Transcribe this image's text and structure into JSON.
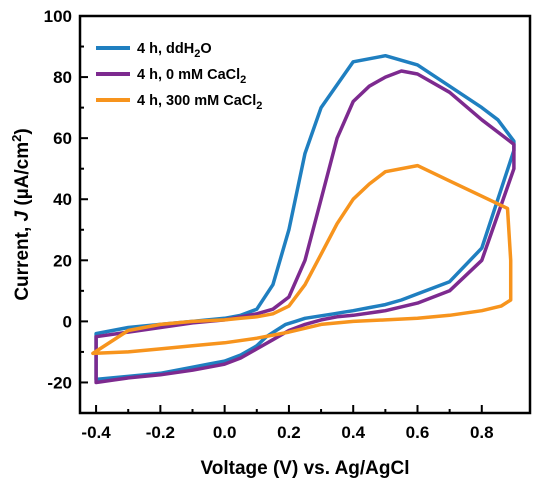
{
  "chart_data": {
    "type": "line",
    "xlabel": "Voltage (V) vs. Ag/AgCl",
    "ylabel": "Current, J (µA/cm²)",
    "ylabel_parts": {
      "pre": "Current, ",
      "italic": "J",
      "mid": " (µA/cm",
      "sup": "2",
      "post": ")"
    },
    "xlim": [
      -0.45,
      0.95
    ],
    "ylim": [
      -30,
      100
    ],
    "xticks": [
      -0.4,
      -0.2,
      0.0,
      0.2,
      0.4,
      0.6,
      0.8
    ],
    "xtick_labels": [
      "-0.4",
      "-0.2",
      "0.0",
      "0.2",
      "0.4",
      "0.6",
      "0.8"
    ],
    "yticks": [
      -20,
      0,
      20,
      40,
      60,
      80,
      100
    ],
    "ytick_labels": [
      "-20",
      "0",
      "20",
      "40",
      "60",
      "80",
      "100"
    ],
    "grid": false,
    "legend_position": "top-left",
    "series": [
      {
        "name": "4 h, ddH2O",
        "label_parts": {
          "pre": "4 h, ddH",
          "sub": "2",
          "post": "O"
        },
        "color": "#1f7fc0",
        "x": [
          -0.4,
          -0.3,
          -0.2,
          -0.1,
          -0.05,
          0.0,
          0.05,
          0.1,
          0.13,
          0.16,
          0.19,
          0.22,
          0.25,
          0.28,
          0.31,
          0.34,
          0.37,
          0.4,
          0.45,
          0.5,
          0.55,
          0.6,
          0.7,
          0.8,
          0.9,
          0.9,
          0.85,
          0.8,
          0.7,
          0.6,
          0.5,
          0.4,
          0.3,
          0.25,
          0.2,
          0.15,
          0.1,
          0.05,
          0.0,
          -0.1,
          -0.2,
          -0.3,
          -0.4,
          -0.4
        ],
        "y": [
          -19,
          -18,
          -17,
          -15,
          -14,
          -13,
          -11,
          -8,
          -5,
          -3,
          -1,
          0,
          1,
          1.5,
          2,
          2.5,
          3,
          3.5,
          4.5,
          5.5,
          7,
          9,
          13,
          24,
          56,
          59,
          66,
          70,
          77,
          84,
          87,
          85,
          70,
          55,
          30,
          12,
          4,
          2,
          1,
          0,
          -1,
          -2,
          -4,
          -19
        ]
      },
      {
        "name": "4 h, 0 mM CaCl2",
        "label_parts": {
          "pre": "4 h, 0 mM CaCl",
          "sub": "2",
          "post": ""
        },
        "color": "#7d2a8f",
        "x": [
          -0.4,
          -0.3,
          -0.2,
          -0.1,
          -0.05,
          0.0,
          0.05,
          0.1,
          0.15,
          0.2,
          0.25,
          0.3,
          0.35,
          0.4,
          0.5,
          0.6,
          0.7,
          0.8,
          0.9,
          0.9,
          0.8,
          0.7,
          0.6,
          0.55,
          0.5,
          0.45,
          0.4,
          0.35,
          0.3,
          0.25,
          0.2,
          0.15,
          0.1,
          0.05,
          0.0,
          -0.1,
          -0.2,
          -0.3,
          -0.4,
          -0.4
        ],
        "y": [
          -20,
          -18.5,
          -17.5,
          -16,
          -15,
          -14,
          -12,
          -9,
          -6,
          -3,
          -1,
          0.5,
          1.5,
          2,
          3.5,
          6,
          10,
          20,
          50,
          58,
          66,
          75,
          81,
          82,
          80,
          77,
          72,
          60,
          40,
          20,
          8,
          4,
          2.5,
          1.5,
          0.5,
          -0.5,
          -2,
          -3.5,
          -5,
          -20
        ]
      },
      {
        "name": "4 h, 300 mM CaCl2",
        "label_parts": {
          "pre": "4 h, 300 mM CaCl",
          "sub": "2",
          "post": ""
        },
        "color": "#f7941d",
        "x": [
          -0.41,
          -0.3,
          -0.2,
          -0.1,
          0.0,
          0.1,
          0.2,
          0.3,
          0.4,
          0.5,
          0.6,
          0.7,
          0.8,
          0.86,
          0.89,
          0.89,
          0.88,
          0.8,
          0.7,
          0.6,
          0.5,
          0.45,
          0.4,
          0.35,
          0.3,
          0.25,
          0.2,
          0.15,
          0.1,
          0.05,
          0.0,
          -0.1,
          -0.2,
          -0.3,
          -0.41
        ],
        "y": [
          -10.5,
          -10,
          -9,
          -8,
          -7,
          -5.5,
          -3.5,
          -1,
          0,
          0.5,
          1,
          2,
          3.5,
          5,
          7,
          20,
          37,
          41,
          46,
          51,
          49,
          45,
          40,
          32,
          22,
          12,
          5,
          2.5,
          1.5,
          1,
          0.5,
          0,
          -1,
          -3,
          -10.5
        ]
      }
    ]
  }
}
